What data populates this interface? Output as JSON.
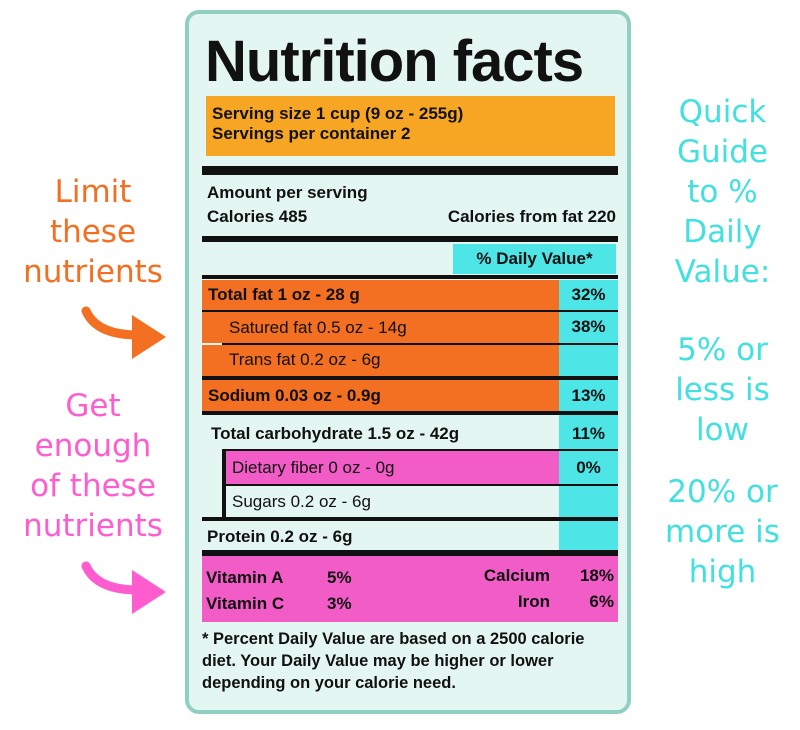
{
  "label": {
    "title": "Nutrition facts",
    "serving_size": "Serving size 1 cup (9 oz - 255g)",
    "servings_per_container": "Servings per container 2",
    "amount_per_serving": "Amount per serving",
    "calories": "Calories 485",
    "calories_from_fat": "Calories from fat 220",
    "daily_value_header": "% Daily Value*",
    "nutrients": [
      {
        "name": "Total fat 1 oz - 28 g",
        "dv": "32%"
      },
      {
        "name": "Satured fat 0.5 oz - 14g",
        "dv": "38%"
      },
      {
        "name": "Trans fat 0.2 oz - 6g",
        "dv": ""
      },
      {
        "name": "Sodium 0.03 oz - 0.9g",
        "dv": "13%"
      },
      {
        "name": "Total carbohydrate 1.5 oz - 42g",
        "dv": "11%"
      },
      {
        "name": "Dietary fiber 0 oz - 0g",
        "dv": "0%"
      },
      {
        "name": "Sugars 0.2 oz - 6g",
        "dv": ""
      },
      {
        "name": "Protein 0.2 oz - 6g",
        "dv": ""
      }
    ],
    "vitamins": {
      "vitamin_a": "Vitamin A",
      "vitamin_a_pct": "5%",
      "vitamin_c": "Vitamin C",
      "vitamin_c_pct": "3%",
      "calcium": "Calcium",
      "calcium_pct": "18%",
      "iron": "Iron",
      "iron_pct": "6%"
    },
    "footnote": "* Percent Daily Value are based on a 2500 calorie diet. Your Daily Value may be higher or lower depending on your calorie need."
  },
  "left_notes": {
    "limit": [
      "Limit",
      "these",
      "nutrients"
    ],
    "get_enough": [
      "Get",
      "enough",
      "of these",
      "nutrients"
    ]
  },
  "right_guide": {
    "heading": [
      "Quick",
      "Guide",
      "to %",
      "Daily",
      "Value:"
    ],
    "low": [
      "5% or",
      "less is",
      "low"
    ],
    "high": [
      "20% or",
      "more is",
      "high"
    ]
  },
  "colors": {
    "serving_bg": "#f6a623",
    "limit_bg": "#f36f21",
    "get_enough_bg": "#f25cc7",
    "dv_cyan": "#4de5e5",
    "card_bg": "#e4f6f1",
    "card_border": "#8fd0c0"
  }
}
